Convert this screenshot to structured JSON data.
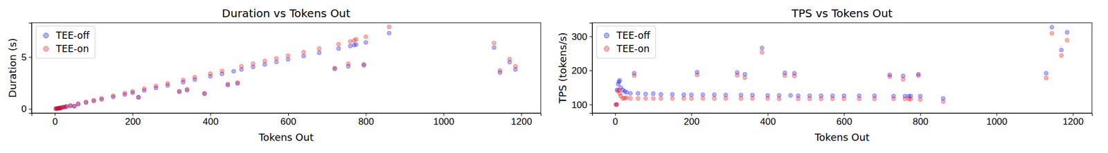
{
  "chart_data": [
    {
      "type": "scatter",
      "title": "Duration vs Tokens Out",
      "x_label": "Tokens Out",
      "y_label": "Duration (s)",
      "xlim": [
        -60,
        1250
      ],
      "xticks": [
        0,
        200,
        400,
        600,
        800,
        1000,
        1200
      ],
      "ylim": [
        -0.4,
        8.3
      ],
      "yticks": [
        0,
        5
      ],
      "legend": "upper left",
      "series": [
        {
          "name": "TEE-off",
          "color": "#0000ff",
          "marker": "circle",
          "x": [
            3,
            5,
            8,
            10,
            12,
            15,
            20,
            25,
            30,
            40,
            50,
            60,
            80,
            100,
            120,
            150,
            180,
            200,
            215,
            230,
            260,
            290,
            320,
            330,
            340,
            360,
            385,
            400,
            430,
            445,
            460,
            470,
            480,
            510,
            540,
            570,
            600,
            640,
            680,
            720,
            730,
            755,
            760,
            770,
            775,
            795,
            800,
            860,
            1130,
            1145,
            1170,
            1185
          ],
          "values": [
            0.03,
            0.035,
            0.05,
            0.06,
            0.07,
            0.1,
            0.14,
            0.18,
            0.22,
            0.3,
            0.26,
            0.45,
            0.61,
            0.76,
            0.92,
            1.15,
            1.39,
            1.55,
            1.1,
            1.78,
            2.02,
            2.26,
            1.65,
            2.58,
            1.8,
            2.82,
            1.45,
            3.14,
            3.38,
            2.3,
            3.63,
            2.45,
            3.8,
            4.04,
            4.28,
            4.52,
            4.77,
            5.09,
            5.41,
            3.85,
            5.82,
            4.1,
            6.06,
            6.15,
            6.2,
            4.2,
            6.4,
            7.3,
            5.9,
            3.5,
            4.5,
            3.8
          ]
        },
        {
          "name": "TEE-on",
          "color": "#ff0000",
          "marker": "circle",
          "x": [
            2,
            5,
            7,
            10,
            12,
            15,
            20,
            25,
            30,
            40,
            50,
            60,
            80,
            100,
            120,
            150,
            180,
            200,
            215,
            230,
            260,
            290,
            320,
            330,
            340,
            360,
            385,
            400,
            430,
            445,
            470,
            480,
            510,
            540,
            570,
            600,
            640,
            680,
            720,
            730,
            755,
            760,
            770,
            775,
            795,
            800,
            860,
            1130,
            1145,
            1170,
            1185
          ],
          "values": [
            0.02,
            0.05,
            0.05,
            0.07,
            0.09,
            0.12,
            0.17,
            0.21,
            0.25,
            0.34,
            0.27,
            0.51,
            0.68,
            0.85,
            1.02,
            1.27,
            1.53,
            1.7,
            1.15,
            1.95,
            2.21,
            2.46,
            1.72,
            2.8,
            1.9,
            3.06,
            1.52,
            3.4,
            3.66,
            2.4,
            2.55,
            4.1,
            4.36,
            4.62,
            4.87,
            5.13,
            5.47,
            5.81,
            3.95,
            6.24,
            4.35,
            6.5,
            6.6,
            6.7,
            4.3,
            6.95,
            7.9,
            6.35,
            3.7,
            4.8,
            4.1
          ]
        }
      ]
    },
    {
      "type": "scatter",
      "title": "TPS vs Tokens Out",
      "x_label": "Tokens Out",
      "y_label": "TPS (tokens/s)",
      "xlim": [
        -60,
        1250
      ],
      "xticks": [
        0,
        200,
        400,
        600,
        800,
        1000,
        1200
      ],
      "ylim": [
        75,
        340
      ],
      "yticks": [
        100,
        200,
        300
      ],
      "legend": "upper left",
      "series": [
        {
          "name": "TEE-off",
          "color": "#0000ff",
          "marker": "circle",
          "x": [
            3,
            5,
            8,
            10,
            12,
            15,
            20,
            25,
            30,
            40,
            50,
            60,
            80,
            100,
            120,
            150,
            180,
            200,
            215,
            230,
            260,
            290,
            320,
            330,
            340,
            360,
            385,
            400,
            430,
            445,
            460,
            470,
            480,
            510,
            540,
            570,
            600,
            640,
            680,
            720,
            730,
            755,
            760,
            770,
            775,
            795,
            800,
            860,
            1130,
            1145,
            1170,
            1185
          ],
          "values": [
            100,
            143,
            160,
            167,
            171,
            150,
            143,
            139,
            136,
            133,
            192,
            133,
            131,
            132,
            130,
            130,
            129,
            129,
            195,
            129,
            129,
            128,
            194,
            128,
            189,
            128,
            266,
            127,
            127,
            193,
            127,
            192,
            126,
            126,
            126,
            126,
            126,
            126,
            126,
            187,
            125,
            184,
            125,
            125,
            125,
            189,
            125,
            118,
            192,
            327,
            260,
            312
          ]
        },
        {
          "name": "TEE-on",
          "color": "#ff0000",
          "marker": "circle",
          "x": [
            2,
            5,
            7,
            10,
            12,
            15,
            20,
            25,
            30,
            40,
            50,
            60,
            80,
            100,
            120,
            150,
            180,
            200,
            215,
            230,
            260,
            290,
            320,
            330,
            340,
            360,
            385,
            400,
            430,
            445,
            470,
            480,
            510,
            540,
            570,
            600,
            640,
            680,
            720,
            730,
            755,
            760,
            770,
            775,
            795,
            800,
            860,
            1130,
            1145,
            1170,
            1185
          ],
          "values": [
            100,
            100,
            140,
            143,
            133,
            125,
            118,
            119,
            120,
            118,
            185,
            118,
            118,
            118,
            118,
            118,
            118,
            118,
            187,
            118,
            118,
            118,
            186,
            118,
            179,
            118,
            253,
            118,
            117,
            185,
            184,
            117,
            117,
            117,
            117,
            117,
            117,
            117,
            182,
            117,
            174,
            117,
            117,
            116,
            185,
            115,
            109,
            178,
            309,
            244,
            289
          ]
        }
      ]
    }
  ]
}
